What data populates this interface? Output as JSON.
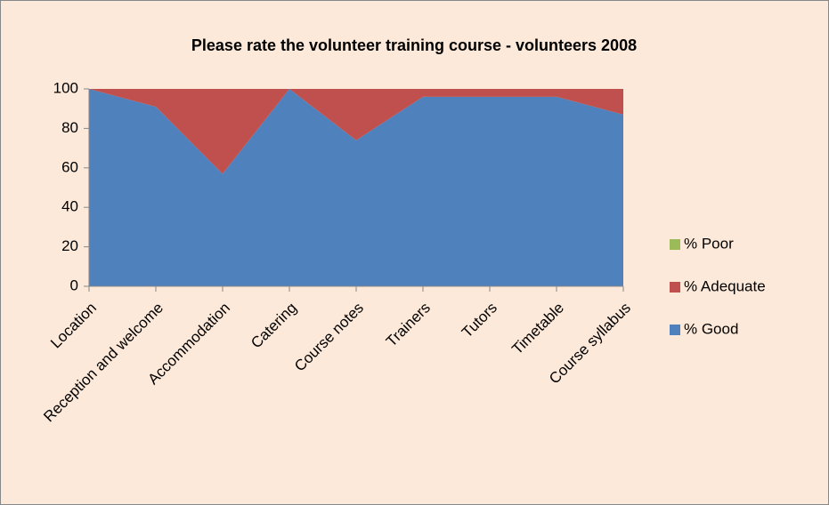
{
  "chart_data": {
    "type": "stacked_area",
    "title": "Please rate the volunteer training course - volunteers 2008",
    "categories": [
      "Location",
      "Reception and welcome",
      "Accommodation",
      "Catering",
      "Course notes",
      "Trainers",
      "Tutors",
      "Timetable",
      "Course syllabus"
    ],
    "series": [
      {
        "name": "% Good",
        "color": "#4f81bd",
        "values": [
          100,
          91,
          57,
          100,
          74,
          96,
          96,
          96,
          87
        ]
      },
      {
        "name": "% Adequate",
        "color": "#c0504d",
        "values": [
          0,
          9,
          43,
          0,
          26,
          4,
          4,
          4,
          13
        ]
      },
      {
        "name": "% Poor",
        "color": "#9bbb59",
        "values": [
          0,
          0,
          0,
          0,
          0,
          0,
          0,
          0,
          0
        ]
      }
    ],
    "ylim": [
      0,
      100
    ],
    "yticks": [
      0,
      20,
      40,
      60,
      80,
      100
    ],
    "legend": "right"
  }
}
